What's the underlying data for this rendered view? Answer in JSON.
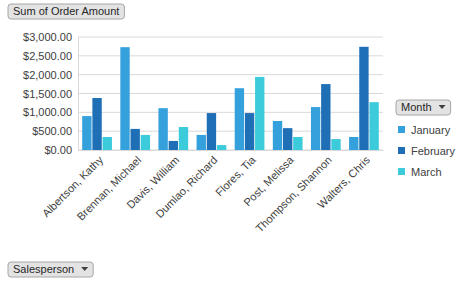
{
  "chart_data": {
    "type": "bar",
    "title": "Sum of Order Amount",
    "x_label": "Salesperson",
    "legend_title": "Month",
    "categories": [
      "Albertson, Kathy",
      "Brennan, Michael",
      "Davis, William",
      "Dumlao, Richard",
      "Flores, Tia",
      "Post, Melissa",
      "Thompson, Shannon",
      "Walters, Chris"
    ],
    "series": [
      {
        "name": "January",
        "color": "#34a0dc",
        "values": [
          900,
          2730,
          1110,
          400,
          1640,
          770,
          1140,
          345
        ]
      },
      {
        "name": "February",
        "color": "#1e6fb5",
        "values": [
          1380,
          560,
          240,
          980,
          980,
          580,
          1750,
          2740
        ]
      },
      {
        "name": "March",
        "color": "#3ccbdb",
        "values": [
          345,
          400,
          610,
          130,
          1940,
          345,
          290,
          1270
        ]
      }
    ],
    "ylim": [
      0,
      3000
    ],
    "yticks": [
      {
        "value": 0,
        "label": "$0.00"
      },
      {
        "value": 500,
        "label": "$500.00"
      },
      {
        "value": 1000,
        "label": "$1,000.00"
      },
      {
        "value": 1500,
        "label": "$1,500.00"
      },
      {
        "value": 2000,
        "label": "$2,000.00"
      },
      {
        "value": 2500,
        "label": "$2,500.00"
      },
      {
        "value": 3000,
        "label": "$3,000.00"
      }
    ],
    "grid": true,
    "legend": "right"
  }
}
